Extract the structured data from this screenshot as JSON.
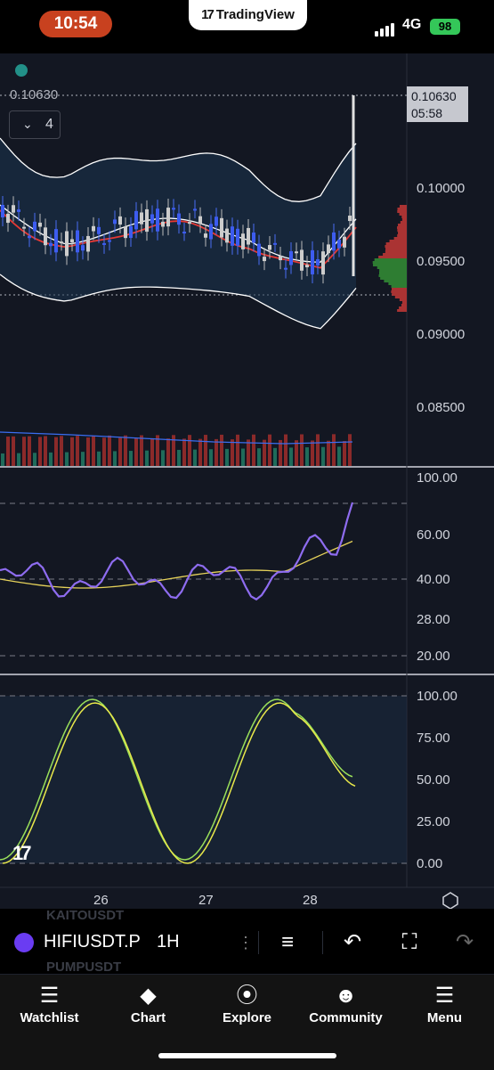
{
  "status": {
    "time": "10:54",
    "app_pill": "TradingView",
    "network": "4G",
    "battery": "98"
  },
  "chart": {
    "last_price": "0.10630",
    "countdown": "05:58",
    "indicator_count": "4",
    "price_axis": [
      "0.10000",
      "0.09500",
      "0.09000",
      "0.08500"
    ],
    "rsi_axis": [
      "100.00",
      "60.00",
      "40.00",
      "28.00",
      "20.00"
    ],
    "stoch_axis": [
      "100.00",
      "75.00",
      "50.00",
      "25.00",
      "0.00"
    ],
    "date_axis": [
      "26",
      "27",
      "28"
    ],
    "colors": {
      "up": "#26a69a",
      "down": "#ef5350",
      "rsi": "#8e6cf0",
      "rsi_ma": "#e6d25a",
      "stoch_k": "#9ae05a",
      "stoch_d": "#e8e84a"
    }
  },
  "toolbar": {
    "ghost_1": "KAITOUSDT",
    "ghost_2": "PUMPUSDT",
    "symbol": "HIFIUSDT.P",
    "interval": "1H"
  },
  "tabs": [
    {
      "label": "Watchlist",
      "icon": "book-icon"
    },
    {
      "label": "Chart",
      "icon": "chart-icon"
    },
    {
      "label": "Explore",
      "icon": "compass-icon"
    },
    {
      "label": "Community",
      "icon": "people-icon"
    },
    {
      "label": "Menu",
      "icon": "hamburger-icon"
    }
  ]
}
